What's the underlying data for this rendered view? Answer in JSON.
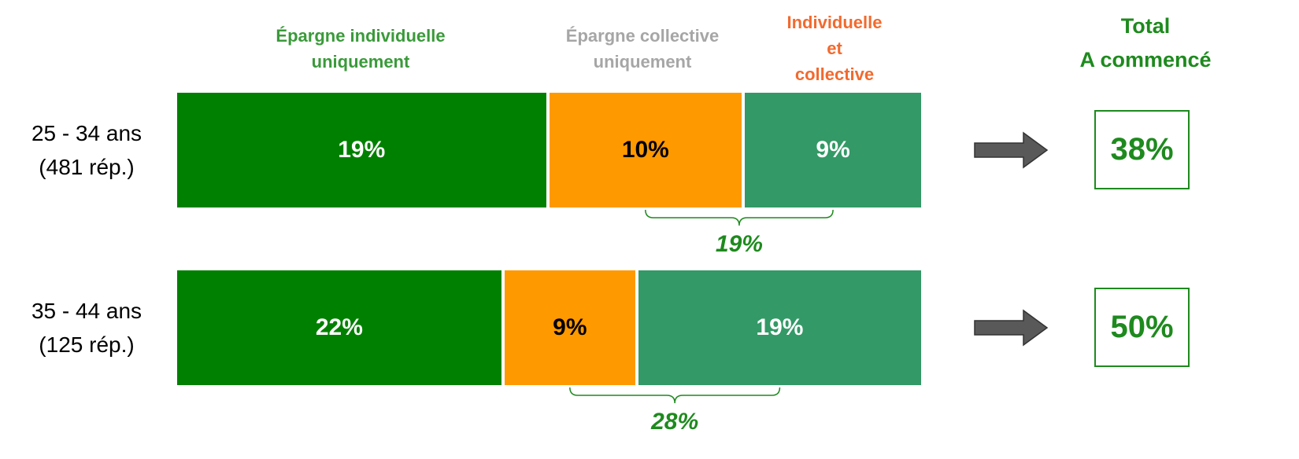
{
  "chart_data": {
    "type": "stacked_bar_horizontal",
    "categories": [
      "25 - 34 ans",
      "35 - 44 ans"
    ],
    "category_notes": [
      "(481 rép.)",
      "(125 rép.)"
    ],
    "series": [
      {
        "name": "Épargne  individuelle uniquement",
        "color": "#008000",
        "header_color": "#3a9a3a",
        "label_color": "#ffffff",
        "values": [
          19,
          22
        ],
        "value_labels": [
          "19%",
          "22%"
        ]
      },
      {
        "name": "Épargne collective uniquement",
        "color": "#ff9900",
        "header_color": "#a6a6a6",
        "label_color": "#000000",
        "values": [
          10,
          9
        ],
        "value_labels": [
          "10%",
          "9%"
        ]
      },
      {
        "name": "Individuelle et collective",
        "color": "#339966",
        "header_color": "#f26a2e",
        "label_color": "#ffffff",
        "values": [
          9,
          19
        ],
        "value_labels": [
          "9%",
          "19%"
        ]
      }
    ],
    "brace": {
      "color": "#1e8a1e",
      "values": [
        19,
        28
      ],
      "value_labels": [
        "19%",
        "28%"
      ]
    },
    "total": {
      "title": [
        "Total",
        "A commencé"
      ],
      "color": "#1e8a1e",
      "values": [
        38,
        50
      ],
      "value_labels": [
        "38%",
        "50%"
      ]
    }
  }
}
